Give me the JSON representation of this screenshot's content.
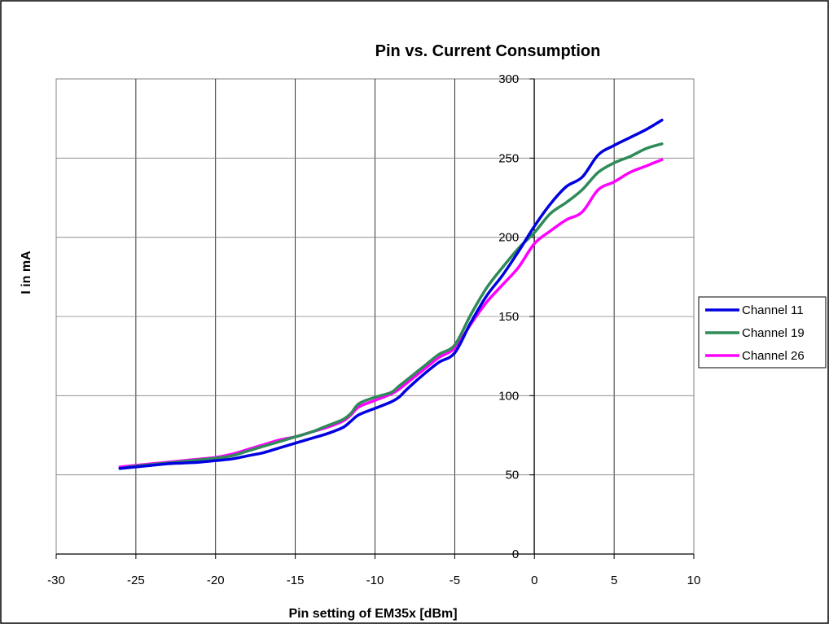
{
  "chart_data": {
    "type": "line",
    "title": "Pin vs. Current Consumption",
    "xlabel": "Pin setting of EM35x [dBm]",
    "ylabel": "I in mA",
    "xlim": [
      -30,
      10
    ],
    "ylim": [
      0,
      300
    ],
    "x_ticks": [
      "-30",
      "-25",
      "-20",
      "-15",
      "-10",
      "-5",
      "0",
      "5",
      "10"
    ],
    "y_ticks": [
      "0",
      "50",
      "100",
      "150",
      "200",
      "250",
      "300"
    ],
    "grid": true,
    "legend_position": "right",
    "series": [
      {
        "name": "Channel 11",
        "color": "#0000e0",
        "points": [
          [
            -26,
            54
          ],
          [
            -25,
            55
          ],
          [
            -24,
            56
          ],
          [
            -23,
            57
          ],
          [
            -22,
            57.5
          ],
          [
            -21,
            58
          ],
          [
            -20,
            59
          ],
          [
            -19,
            60
          ],
          [
            -18,
            62
          ],
          [
            -17,
            64
          ],
          [
            -16,
            67
          ],
          [
            -15,
            70
          ],
          [
            -14,
            73
          ],
          [
            -13,
            76
          ],
          [
            -12,
            80
          ],
          [
            -11.5,
            84
          ],
          [
            -11,
            88
          ],
          [
            -10,
            92
          ],
          [
            -9,
            96
          ],
          [
            -8.5,
            99
          ],
          [
            -8,
            104
          ],
          [
            -7,
            113
          ],
          [
            -6,
            121
          ],
          [
            -5,
            127
          ],
          [
            -4,
            146
          ],
          [
            -3,
            163
          ],
          [
            -2,
            176
          ],
          [
            -1,
            191
          ],
          [
            0,
            207
          ],
          [
            1,
            221
          ],
          [
            2,
            232
          ],
          [
            3,
            238
          ],
          [
            4,
            252
          ],
          [
            5,
            258
          ],
          [
            6,
            263
          ],
          [
            7,
            268
          ],
          [
            8,
            274
          ]
        ]
      },
      {
        "name": "Channel 19",
        "color": "#2e8b57",
        "points": [
          [
            -26,
            54
          ],
          [
            -25,
            55.5
          ],
          [
            -24,
            56.5
          ],
          [
            -23,
            57.5
          ],
          [
            -22,
            58.5
          ],
          [
            -21,
            59.5
          ],
          [
            -20,
            60.5
          ],
          [
            -19,
            62
          ],
          [
            -18,
            65
          ],
          [
            -17,
            68
          ],
          [
            -16,
            71
          ],
          [
            -15,
            74
          ],
          [
            -14,
            77
          ],
          [
            -13,
            81
          ],
          [
            -12,
            85
          ],
          [
            -11.5,
            89
          ],
          [
            -11,
            95
          ],
          [
            -10,
            99
          ],
          [
            -9,
            102
          ],
          [
            -8.5,
            106
          ],
          [
            -8,
            110
          ],
          [
            -7,
            118
          ],
          [
            -6,
            126
          ],
          [
            -5,
            132
          ],
          [
            -4,
            151
          ],
          [
            -3,
            168
          ],
          [
            -2,
            181
          ],
          [
            -1,
            193
          ],
          [
            0,
            203
          ],
          [
            1,
            215
          ],
          [
            2,
            222
          ],
          [
            3,
            230
          ],
          [
            4,
            241
          ],
          [
            5,
            247
          ],
          [
            6,
            251
          ],
          [
            7,
            256
          ],
          [
            8,
            259
          ]
        ]
      },
      {
        "name": "Channel 26",
        "color": "#ff00ff",
        "points": [
          [
            -26,
            55
          ],
          [
            -25,
            56
          ],
          [
            -24,
            57
          ],
          [
            -23,
            58
          ],
          [
            -22,
            59
          ],
          [
            -21,
            60
          ],
          [
            -20,
            61
          ],
          [
            -19,
            63
          ],
          [
            -18,
            66
          ],
          [
            -17,
            69
          ],
          [
            -16,
            72
          ],
          [
            -15,
            74
          ],
          [
            -14,
            77
          ],
          [
            -13,
            80
          ],
          [
            -12,
            84
          ],
          [
            -11.5,
            88
          ],
          [
            -11,
            93
          ],
          [
            -10,
            97
          ],
          [
            -9,
            101
          ],
          [
            -8.5,
            104
          ],
          [
            -8,
            108
          ],
          [
            -7,
            116
          ],
          [
            -6,
            124
          ],
          [
            -5,
            130
          ],
          [
            -4,
            145
          ],
          [
            -3,
            159
          ],
          [
            -2,
            170
          ],
          [
            -1,
            181
          ],
          [
            0,
            196
          ],
          [
            1,
            204
          ],
          [
            2,
            211
          ],
          [
            3,
            216
          ],
          [
            4,
            230
          ],
          [
            5,
            235
          ],
          [
            6,
            241
          ],
          [
            7,
            245
          ],
          [
            8,
            249
          ]
        ]
      }
    ]
  }
}
